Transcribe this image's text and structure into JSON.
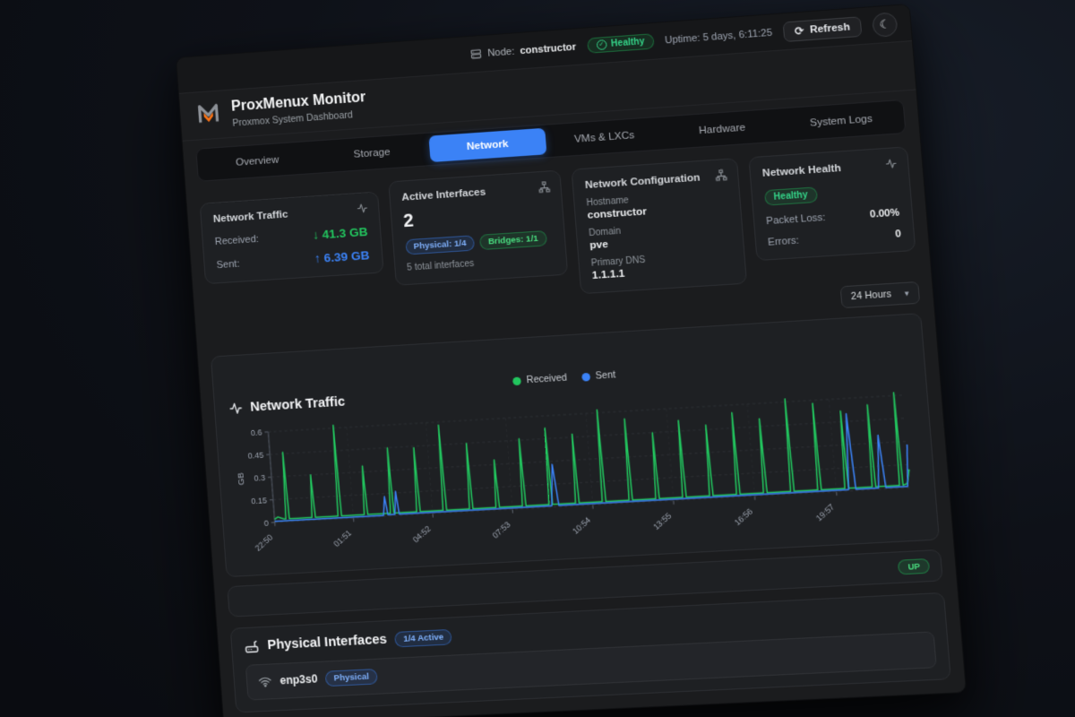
{
  "topbar": {
    "node_prefix": "Node:",
    "node_name": "constructor",
    "health": "Healthy",
    "uptime": "Uptime: 5 days, 6:11:25",
    "refresh": "Refresh"
  },
  "header": {
    "title": "ProxMenux Monitor",
    "subtitle": "Proxmox System Dashboard"
  },
  "tabs": [
    {
      "label": "Overview"
    },
    {
      "label": "Storage"
    },
    {
      "label": "Network",
      "active": true
    },
    {
      "label": "VMs & LXCs"
    },
    {
      "label": "Hardware"
    },
    {
      "label": "System Logs"
    }
  ],
  "cards": {
    "traffic": {
      "title": "Network Traffic",
      "rows": [
        {
          "label": "Received:",
          "arrow": "↓",
          "value": "41.3 GB",
          "color": "#22c55e"
        },
        {
          "label": "Sent:",
          "arrow": "↑",
          "value": "6.39 GB",
          "color": "#3b82f6"
        }
      ]
    },
    "interfaces": {
      "title": "Active Interfaces",
      "count": "2",
      "badges": [
        {
          "label": "Physical: 1/4",
          "style": "blue"
        },
        {
          "label": "Bridges: 1/1",
          "style": "green"
        }
      ],
      "footnote": "5 total interfaces"
    },
    "config": {
      "title": "Network Configuration",
      "fields": [
        {
          "label": "Hostname",
          "value": "constructor"
        },
        {
          "label": "Domain",
          "value": "pve"
        },
        {
          "label": "Primary DNS",
          "value": "1.1.1.1"
        }
      ]
    },
    "health": {
      "title": "Network Health",
      "status": "Healthy",
      "rows": [
        {
          "label": "Packet Loss:",
          "value": "0.00%"
        },
        {
          "label": "Errors:",
          "value": "0"
        }
      ]
    }
  },
  "toolbar": {
    "timeframe": "24 Hours"
  },
  "chart_card": {
    "title": "Network Traffic"
  },
  "chart_data": {
    "type": "line",
    "title": "Network Traffic",
    "ylabel": "GB",
    "ylim": [
      0,
      0.6
    ],
    "yticks": [
      0,
      0.15,
      0.3,
      0.45,
      0.6
    ],
    "xlim": [
      0,
      1430
    ],
    "x_unit": "minutes since 22:50",
    "grid": "dashed",
    "legend_position": "top-center",
    "xticks": [
      {
        "t": 0,
        "label": "22:50"
      },
      {
        "t": 181,
        "label": "01:51"
      },
      {
        "t": 362,
        "label": "04:52"
      },
      {
        "t": 543,
        "label": "07:53"
      },
      {
        "t": 724,
        "label": "10:54"
      },
      {
        "t": 905,
        "label": "13:55"
      },
      {
        "t": 1086,
        "label": "16:56"
      },
      {
        "t": 1267,
        "label": "19:57"
      }
    ],
    "series": [
      {
        "name": "Received",
        "color": "#22c55e",
        "points": [
          [
            0,
            0.02
          ],
          [
            8,
            0.035
          ],
          [
            14,
            0.028
          ],
          [
            22,
            0.02
          ],
          [
            26,
            0.02
          ],
          [
            30,
            0.46
          ],
          [
            34,
            0.02
          ],
          [
            86,
            0.02
          ],
          [
            90,
            0.3
          ],
          [
            94,
            0.02
          ],
          [
            146,
            0.02
          ],
          [
            150,
            0.62
          ],
          [
            154,
            0.02
          ],
          [
            206,
            0.02
          ],
          [
            210,
            0.34
          ],
          [
            214,
            0.02
          ],
          [
            266,
            0.02
          ],
          [
            270,
            0.45
          ],
          [
            274,
            0.02
          ],
          [
            326,
            0.02
          ],
          [
            330,
            0.44
          ],
          [
            334,
            0.02
          ],
          [
            386,
            0.02
          ],
          [
            390,
            0.58
          ],
          [
            394,
            0.02
          ],
          [
            446,
            0.02
          ],
          [
            450,
            0.45
          ],
          [
            454,
            0.02
          ],
          [
            506,
            0.02
          ],
          [
            510,
            0.33
          ],
          [
            514,
            0.02
          ],
          [
            566,
            0.02
          ],
          [
            570,
            0.46
          ],
          [
            574,
            0.02
          ],
          [
            626,
            0.02
          ],
          [
            630,
            0.52
          ],
          [
            634,
            0.02
          ],
          [
            686,
            0.02
          ],
          [
            690,
            0.47
          ],
          [
            694,
            0.02
          ],
          [
            746,
            0.02
          ],
          [
            750,
            0.62
          ],
          [
            754,
            0.02
          ],
          [
            806,
            0.02
          ],
          [
            810,
            0.55
          ],
          [
            814,
            0.02
          ],
          [
            866,
            0.02
          ],
          [
            870,
            0.45
          ],
          [
            874,
            0.02
          ],
          [
            926,
            0.02
          ],
          [
            930,
            0.52
          ],
          [
            934,
            0.02
          ],
          [
            986,
            0.02
          ],
          [
            990,
            0.48
          ],
          [
            994,
            0.02
          ],
          [
            1046,
            0.02
          ],
          [
            1050,
            0.55
          ],
          [
            1054,
            0.02
          ],
          [
            1106,
            0.02
          ],
          [
            1110,
            0.5
          ],
          [
            1114,
            0.02
          ],
          [
            1166,
            0.02
          ],
          [
            1170,
            0.62
          ],
          [
            1174,
            0.02
          ],
          [
            1226,
            0.02
          ],
          [
            1230,
            0.58
          ],
          [
            1234,
            0.02
          ],
          [
            1286,
            0.02
          ],
          [
            1290,
            0.52
          ],
          [
            1294,
            0.02
          ],
          [
            1346,
            0.02
          ],
          [
            1350,
            0.55
          ],
          [
            1354,
            0.02
          ],
          [
            1406,
            0.02
          ],
          [
            1410,
            0.62
          ],
          [
            1414,
            0.02
          ],
          [
            1424,
            0.03
          ],
          [
            1430,
            0.12
          ]
        ]
      },
      {
        "name": "Sent",
        "color": "#3b82f6",
        "points": [
          [
            0,
            0.008
          ],
          [
            240,
            0.008
          ],
          [
            250,
            0.008
          ],
          [
            255,
            0.13
          ],
          [
            260,
            0.01
          ],
          [
            276,
            0.01
          ],
          [
            281,
            0.16
          ],
          [
            286,
            0.01
          ],
          [
            632,
            0.01
          ],
          [
            640,
            0.28
          ],
          [
            648,
            0.01
          ],
          [
            1294,
            0.01
          ],
          [
            1302,
            0.5
          ],
          [
            1310,
            0.01
          ],
          [
            1360,
            0.01
          ],
          [
            1368,
            0.35
          ],
          [
            1376,
            0.01
          ],
          [
            1424,
            0.01
          ],
          [
            1430,
            0.28
          ]
        ]
      }
    ]
  },
  "status_row": {
    "badge": "UP"
  },
  "physical": {
    "title": "Physical Interfaces",
    "active_badge": "1/4 Active",
    "rows": [
      {
        "name": "enp3s0",
        "badge": "Physical"
      }
    ]
  },
  "colors": {
    "accent": "#3b82f6",
    "green": "#22c55e",
    "orange": "#f97316"
  },
  "glyphs": {
    "moon": "☾",
    "refresh": "⟳",
    "chevron": "▾",
    "check": "✓"
  }
}
